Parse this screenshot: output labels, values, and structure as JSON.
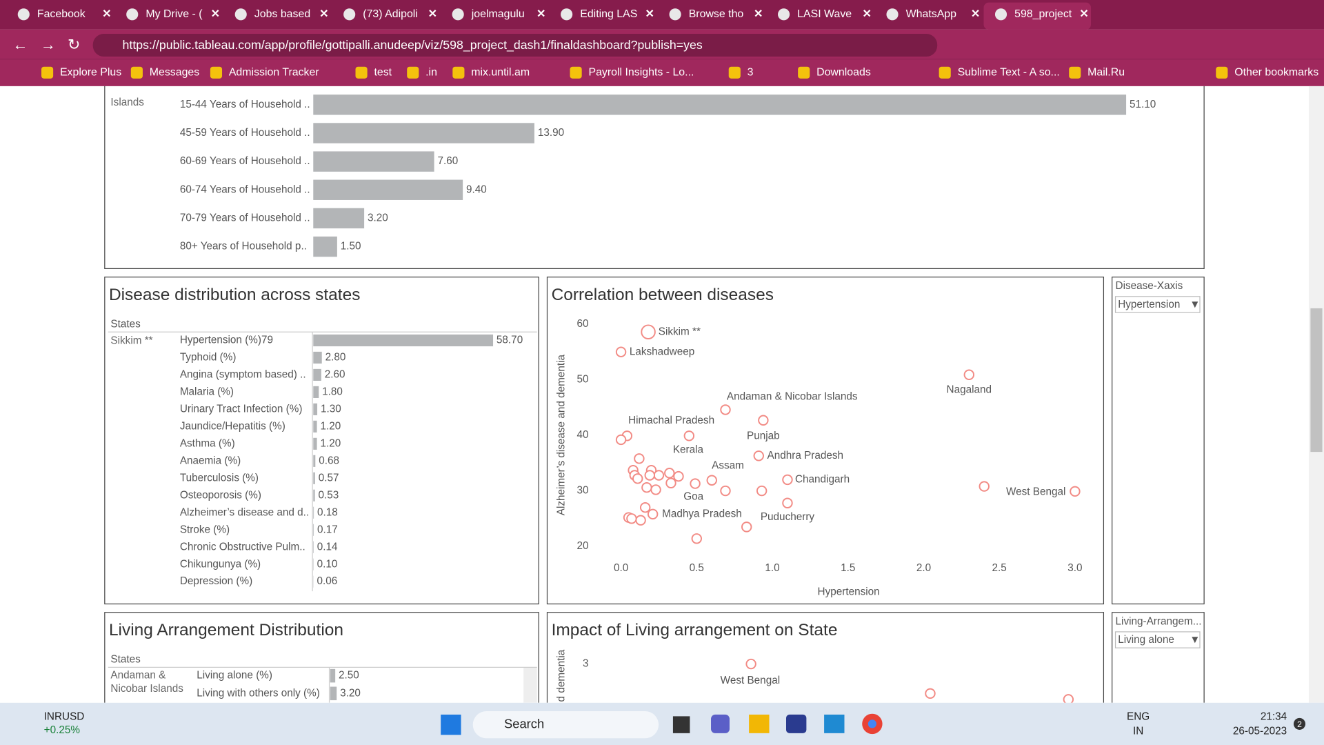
{
  "browser": {
    "tabs": [
      "Facebook",
      "My Drive - (",
      "Jobs based",
      "(73) Adipoli",
      "joelmagulu",
      "Editing LAS",
      "Browse tho",
      "LASI Wave",
      "WhatsApp",
      "598_project"
    ],
    "url": "https://public.tableau.com/app/profile/gottipalli.anudeep/viz/598_project_dash1/finaldashboard?publish=yes",
    "bookmarks": [
      "Explore Plus",
      "Messages",
      "Admission Tracker",
      "test",
      ".in",
      "mix.until.am",
      "Payroll Insights - Lo...",
      "3",
      "Downloads",
      "Sublime Text - A so...",
      "Mail.Ru",
      "Other bookmarks"
    ]
  },
  "chart_data": [
    {
      "type": "bar",
      "group": "Islands",
      "categories": [
        "15-44 Years of Household ..",
        "45-59 Years of Household ..",
        "60-69 Years of Household ..",
        "60-74 Years of Household ..",
        "70-79 Years of Household ..",
        "80+ Years of Household p.."
      ],
      "values": [
        51.1,
        13.9,
        7.6,
        9.4,
        3.2,
        1.5
      ],
      "value_labels": [
        "51.10",
        "13.90",
        "7.60",
        "9.40",
        "3.20",
        "1.50"
      ],
      "color": "#b3b5b7",
      "xlim": [
        0,
        56
      ]
    },
    {
      "type": "bar",
      "title": "Disease distribution across states",
      "row_header": "States",
      "group": "Sikkim **",
      "categories": [
        "Hypertension (%)79",
        "Typhoid (%)",
        "Angina (symptom based) ..",
        "Malaria (%)",
        "Urinary Tract Infection (%)",
        "Jaundice/Hepatitis (%)",
        "Asthma (%)",
        "Anaemia (%)",
        "Tuberculosis (%)",
        "Osteoporosis (%)",
        "Alzheimer’s disease and d..",
        "Stroke (%)",
        "Chronic Obstructive Pulm..",
        "Chikungunya (%)",
        "Depression (%)"
      ],
      "values": [
        58.7,
        2.8,
        2.6,
        1.8,
        1.3,
        1.2,
        1.2,
        0.68,
        0.57,
        0.53,
        0.18,
        0.17,
        0.14,
        0.1,
        0.06
      ],
      "value_labels": [
        "58.70",
        "2.80",
        "2.60",
        "1.80",
        "1.30",
        "1.20",
        "1.20",
        "0.68",
        "0.57",
        "0.53",
        "0.18",
        "0.17",
        "0.14",
        "0.10",
        "0.06"
      ],
      "color": "#b3b5b7",
      "xlim": [
        0,
        73.6
      ]
    },
    {
      "type": "scatter",
      "title": "Correlation between diseases",
      "xlabel": "Hypertension",
      "ylabel": "Alzheimer’s disease and dementia",
      "x": [
        0.18,
        0.0,
        2.3,
        0.69,
        0.94,
        0.45,
        0.91,
        0.12,
        0.6,
        1.1,
        0.49,
        3.0,
        0.21,
        1.1,
        2.4,
        0.83,
        0.5,
        0.69,
        0.93,
        0.04,
        0.0,
        0.08,
        0.09,
        0.11,
        0.2,
        0.25,
        0.32,
        0.38,
        0.33,
        0.17,
        0.23,
        0.16,
        0.05,
        0.07,
        0.13,
        0.19
      ],
      "values": [
        58.6,
        55.0,
        50.9,
        44.6,
        42.7,
        39.9,
        36.3,
        35.8,
        31.9,
        32.0,
        31.3,
        29.9,
        25.8,
        27.8,
        30.8,
        23.5,
        21.4,
        30.0,
        30.0,
        39.9,
        39.2,
        33.7,
        32.8,
        32.2,
        33.7,
        32.8,
        33.2,
        32.6,
        31.4,
        30.6,
        30.2,
        27.0,
        25.2,
        25.0,
        24.7,
        32.8
      ],
      "labels": [
        "Sikkim **",
        "Lakshadweep",
        "Nagaland",
        "Andaman & Nicobar Islands",
        "Punjab",
        "Himachal Pradesh",
        "Andhra Pradesh",
        "Kerala",
        "Assam",
        "Chandigarh",
        "Goa",
        "West Bengal",
        "Madhya Pradesh",
        "Puducherry",
        null,
        null,
        null,
        null,
        null,
        null,
        null,
        null,
        null,
        null,
        null,
        null,
        null,
        null,
        null,
        null,
        null,
        null,
        null,
        null,
        null,
        null
      ],
      "color": "#f28b85",
      "xlim": [
        -0.17,
        3.15
      ],
      "ylim": [
        18,
        62.1
      ],
      "xticks": [
        {
          "value": 0,
          "label": "0.0"
        },
        0.5,
        {
          "value": 1,
          "label": "1.0"
        },
        1.5,
        {
          "value": 2,
          "label": "2.0"
        },
        2.5,
        {
          "value": 3,
          "label": "3.0"
        }
      ],
      "yticks": [
        20,
        30,
        40,
        50,
        60
      ]
    },
    {
      "type": "bar",
      "title": "Living Arrangement Distribution",
      "row_header": "States",
      "group": "Andaman & Nicobar Islands",
      "categories": [
        "Living alone (%)",
        "Living with others only (%)"
      ],
      "values": [
        2.5,
        3.2
      ],
      "value_labels": [
        "2.50",
        "3.20"
      ],
      "color": "#b3b5b7",
      "xlim": [
        0,
        95
      ]
    },
    {
      "type": "scatter",
      "title": "Impact of Living arrangement on State",
      "ylabel": "d dementia",
      "x": [
        18.6,
        40,
        56.5
      ],
      "values": [
        3,
        2.5,
        2.4
      ],
      "labels": [
        "West Bengal",
        null,
        null
      ],
      "color": "#f28b85",
      "xlim": [
        0,
        60
      ],
      "ylim": [
        2.2,
        3.23
      ],
      "yticks": [
        3
      ]
    }
  ],
  "filters": [
    {
      "title": "Disease-Xaxis",
      "value": "Hypertension"
    },
    {
      "title": "Living-Arrangem...",
      "value": "Living alone"
    }
  ],
  "taskbar": {
    "ticker": "INRUSD",
    "change": "+0.25%",
    "search": "Search",
    "lang": "ENG",
    "region": "IN",
    "time": "21:34",
    "date": "26-05-2023",
    "badge": "2"
  }
}
